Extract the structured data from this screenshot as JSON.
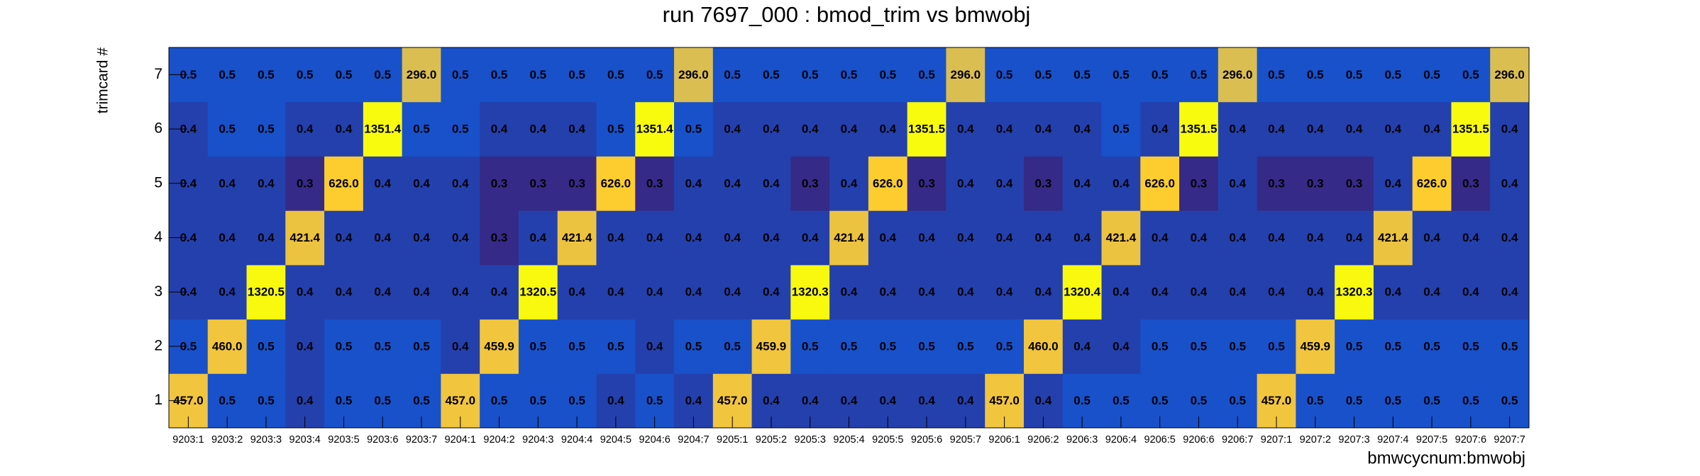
{
  "chart_data": {
    "type": "heatmap",
    "title": "run 7697_000 : bmod_trim vs bmwobj",
    "x_label": "bmwcycnum:bmwobj",
    "y_label": "trimcard #",
    "log_color": true,
    "x_categories": [
      "9203:1",
      "9203:2",
      "9203:3",
      "9203:4",
      "9203:5",
      "9203:6",
      "9203:7",
      "9204:1",
      "9204:2",
      "9204:3",
      "9204:4",
      "9204:5",
      "9204:6",
      "9204:7",
      "9205:1",
      "9205:2",
      "9205:3",
      "9205:4",
      "9205:5",
      "9205:6",
      "9205:7",
      "9206:1",
      "9206:2",
      "9206:3",
      "9206:4",
      "9206:5",
      "9206:6",
      "9206:7",
      "9207:1",
      "9207:2",
      "9207:3",
      "9207:4",
      "9207:5",
      "9207:6",
      "9207:7"
    ],
    "y_categories": [
      "1",
      "2",
      "3",
      "4",
      "5",
      "6",
      "7"
    ],
    "values": [
      [
        457.0,
        0.5,
        0.5,
        0.4,
        0.5,
        0.5,
        0.5,
        457.0,
        0.5,
        0.5,
        0.5,
        0.4,
        0.5,
        0.4,
        457.0,
        0.4,
        0.4,
        0.4,
        0.4,
        0.4,
        0.4,
        457.0,
        0.4,
        0.5,
        0.5,
        0.5,
        0.5,
        0.5,
        457.0,
        0.5,
        0.5,
        0.5,
        0.5,
        0.5,
        0.5
      ],
      [
        0.5,
        460.0,
        0.5,
        0.4,
        0.5,
        0.5,
        0.5,
        0.4,
        459.9,
        0.5,
        0.5,
        0.5,
        0.4,
        0.5,
        0.5,
        459.9,
        0.5,
        0.5,
        0.5,
        0.5,
        0.5,
        0.5,
        460.0,
        0.4,
        0.4,
        0.5,
        0.5,
        0.5,
        0.5,
        459.9,
        0.5,
        0.5,
        0.5,
        0.5,
        0.5
      ],
      [
        0.4,
        0.4,
        1320.5,
        0.4,
        0.4,
        0.4,
        0.4,
        0.4,
        0.4,
        1320.5,
        0.4,
        0.4,
        0.4,
        0.4,
        0.4,
        0.4,
        1320.3,
        0.4,
        0.4,
        0.4,
        0.4,
        0.4,
        0.4,
        1320.4,
        0.4,
        0.4,
        0.4,
        0.4,
        0.4,
        0.4,
        1320.3,
        0.4,
        0.4,
        0.4,
        0.4
      ],
      [
        0.4,
        0.4,
        0.4,
        421.4,
        0.4,
        0.4,
        0.4,
        0.4,
        0.3,
        0.4,
        421.4,
        0.4,
        0.4,
        0.4,
        0.4,
        0.4,
        0.4,
        421.4,
        0.4,
        0.4,
        0.4,
        0.4,
        0.4,
        0.4,
        421.4,
        0.4,
        0.4,
        0.4,
        0.4,
        0.4,
        0.4,
        421.4,
        0.4,
        0.4,
        0.4
      ],
      [
        0.4,
        0.4,
        0.4,
        0.3,
        626.0,
        0.4,
        0.4,
        0.4,
        0.3,
        0.3,
        0.3,
        626.0,
        0.3,
        0.4,
        0.4,
        0.4,
        0.3,
        0.4,
        626.0,
        0.3,
        0.4,
        0.4,
        0.3,
        0.4,
        0.4,
        626.0,
        0.3,
        0.4,
        0.3,
        0.3,
        0.3,
        0.4,
        626.0,
        0.3,
        0.4
      ],
      [
        0.4,
        0.5,
        0.5,
        0.4,
        0.4,
        1351.4,
        0.5,
        0.5,
        0.4,
        0.4,
        0.4,
        0.5,
        1351.4,
        0.5,
        0.4,
        0.4,
        0.4,
        0.4,
        0.4,
        1351.5,
        0.4,
        0.4,
        0.4,
        0.4,
        0.5,
        0.4,
        1351.5,
        0.4,
        0.4,
        0.4,
        0.4,
        0.4,
        0.4,
        1351.5,
        0.4
      ],
      [
        0.5,
        0.5,
        0.5,
        0.5,
        0.5,
        0.5,
        296.0,
        0.5,
        0.5,
        0.5,
        0.5,
        0.5,
        0.5,
        296.0,
        0.5,
        0.5,
        0.5,
        0.5,
        0.5,
        0.5,
        296.0,
        0.5,
        0.5,
        0.5,
        0.5,
        0.5,
        0.5,
        296.0,
        0.5,
        0.5,
        0.5,
        0.5,
        0.5,
        0.5,
        296.0
      ]
    ],
    "value_labels": [
      [
        "457.0",
        "0.5",
        "0.5",
        "0.4",
        "0.5",
        "0.5",
        "0.5",
        "457.0",
        "0.5",
        "0.5",
        "0.5",
        "0.4",
        "0.5",
        "0.4",
        "457.0",
        "0.4",
        "0.4",
        "0.4",
        "0.4",
        "0.4",
        "0.4",
        "457.0",
        "0.4",
        "0.5",
        "0.5",
        "0.5",
        "0.5",
        "0.5",
        "457.0",
        "0.5",
        "0.5",
        "0.5",
        "0.5",
        "0.5",
        "0.5"
      ],
      [
        "0.5",
        "460.0",
        "0.5",
        "0.4",
        "0.5",
        "0.5",
        "0.5",
        "0.4",
        "459.9",
        "0.5",
        "0.5",
        "0.5",
        "0.4",
        "0.5",
        "0.5",
        "459.9",
        "0.5",
        "0.5",
        "0.5",
        "0.5",
        "0.5",
        "0.5",
        "460.0",
        "0.4",
        "0.4",
        "0.5",
        "0.5",
        "0.5",
        "0.5",
        "459.9",
        "0.5",
        "0.5",
        "0.5",
        "0.5",
        "0.5"
      ],
      [
        "0.4",
        "0.4",
        "1320.5",
        "0.4",
        "0.4",
        "0.4",
        "0.4",
        "0.4",
        "0.4",
        "1320.5",
        "0.4",
        "0.4",
        "0.4",
        "0.4",
        "0.4",
        "0.4",
        "1320.3",
        "0.4",
        "0.4",
        "0.4",
        "0.4",
        "0.4",
        "0.4",
        "1320.4",
        "0.4",
        "0.4",
        "0.4",
        "0.4",
        "0.4",
        "0.4",
        "1320.3",
        "0.4",
        "0.4",
        "0.4",
        "0.4"
      ],
      [
        "0.4",
        "0.4",
        "0.4",
        "421.4",
        "0.4",
        "0.4",
        "0.4",
        "0.4",
        "0.3",
        "0.4",
        "421.4",
        "0.4",
        "0.4",
        "0.4",
        "0.4",
        "0.4",
        "0.4",
        "421.4",
        "0.4",
        "0.4",
        "0.4",
        "0.4",
        "0.4",
        "0.4",
        "421.4",
        "0.4",
        "0.4",
        "0.4",
        "0.4",
        "0.4",
        "0.4",
        "421.4",
        "0.4",
        "0.4",
        "0.4"
      ],
      [
        "0.4",
        "0.4",
        "0.4",
        "0.3",
        "626.0",
        "0.4",
        "0.4",
        "0.4",
        "0.3",
        "0.3",
        "0.3",
        "626.0",
        "0.3",
        "0.4",
        "0.4",
        "0.4",
        "0.3",
        "0.4",
        "626.0",
        "0.3",
        "0.4",
        "0.4",
        "0.3",
        "0.4",
        "0.4",
        "626.0",
        "0.3",
        "0.4",
        "0.3",
        "0.3",
        "0.3",
        "0.4",
        "626.0",
        "0.3",
        "0.4"
      ],
      [
        "0.4",
        "0.5",
        "0.5",
        "0.4",
        "0.4",
        "1351.4",
        "0.5",
        "0.5",
        "0.4",
        "0.4",
        "0.4",
        "0.5",
        "1351.4",
        "0.5",
        "0.4",
        "0.4",
        "0.4",
        "0.4",
        "0.4",
        "1351.5",
        "0.4",
        "0.4",
        "0.4",
        "0.4",
        "0.5",
        "0.4",
        "1351.5",
        "0.4",
        "0.4",
        "0.4",
        "0.4",
        "0.4",
        "0.4",
        "1351.5",
        "0.4"
      ],
      [
        "0.5",
        "0.5",
        "0.5",
        "0.5",
        "0.5",
        "0.5",
        "296.0",
        "0.5",
        "0.5",
        "0.5",
        "0.5",
        "0.5",
        "0.5",
        "296.0",
        "0.5",
        "0.5",
        "0.5",
        "0.5",
        "0.5",
        "0.5",
        "296.0",
        "0.5",
        "0.5",
        "0.5",
        "0.5",
        "0.5",
        "0.5",
        "296.0",
        "0.5",
        "0.5",
        "0.5",
        "0.5",
        "0.5",
        "0.5",
        "296.0"
      ]
    ]
  }
}
